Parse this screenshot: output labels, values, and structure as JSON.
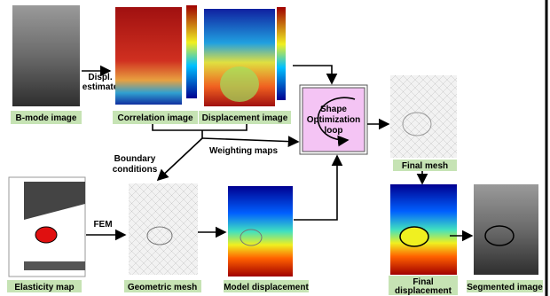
{
  "panels": {
    "b_mode": "B-mode image",
    "correlation": "Correlation image",
    "displacement": "Displacement image",
    "final_mesh": "Final mesh",
    "elasticity": "Elasticity map",
    "geometric_mesh": "Geometric mesh",
    "model_displacement": "Model displacement",
    "final_displacement": [
      "Final",
      "displacement"
    ],
    "segmented": "Segmented image"
  },
  "annotations": {
    "displ_estimate": [
      "Displ.",
      "estimate"
    ],
    "boundary_conditions": [
      "Boundary",
      "conditions"
    ],
    "weighting_maps": "Weighting maps",
    "fem": "FEM"
  },
  "loop_box": [
    "Shape",
    "Optimization",
    "loop"
  ]
}
